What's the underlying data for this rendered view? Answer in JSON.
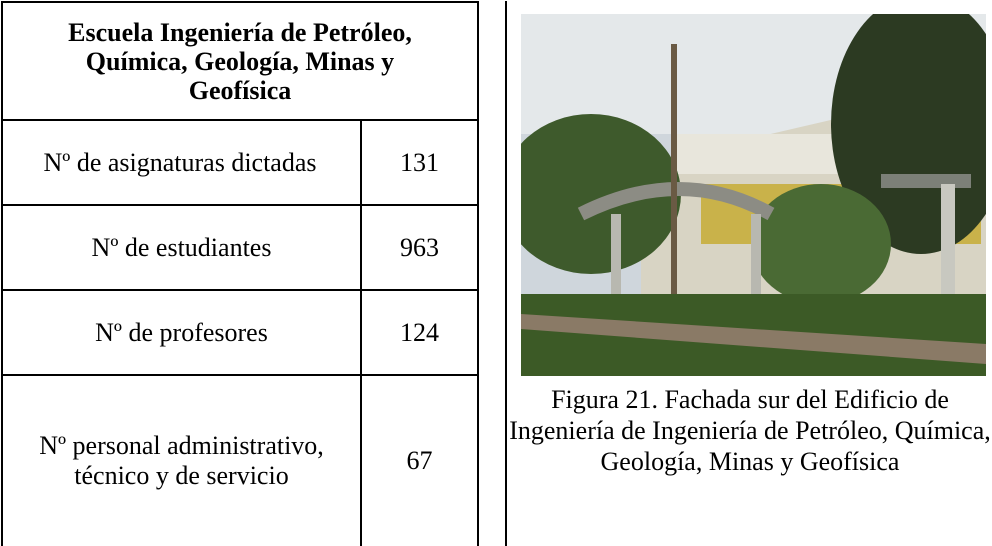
{
  "table": {
    "header": "Escuela Ingeniería de Petróleo, Química, Geología, Minas y Geofísica",
    "rows": [
      [
        "Nº de asignaturas dictadas",
        131
      ],
      [
        "Nº de estudiantes",
        963
      ],
      [
        "Nº de profesores",
        124
      ],
      [
        "Nº personal administrativo, técnico y de servicio",
        67
      ]
    ]
  },
  "figure": {
    "caption": "Figura 21. Fachada sur del Edificio de Ingeniería de Ingeniería de Petróleo, Química, Geología, Minas y Geofísica"
  }
}
